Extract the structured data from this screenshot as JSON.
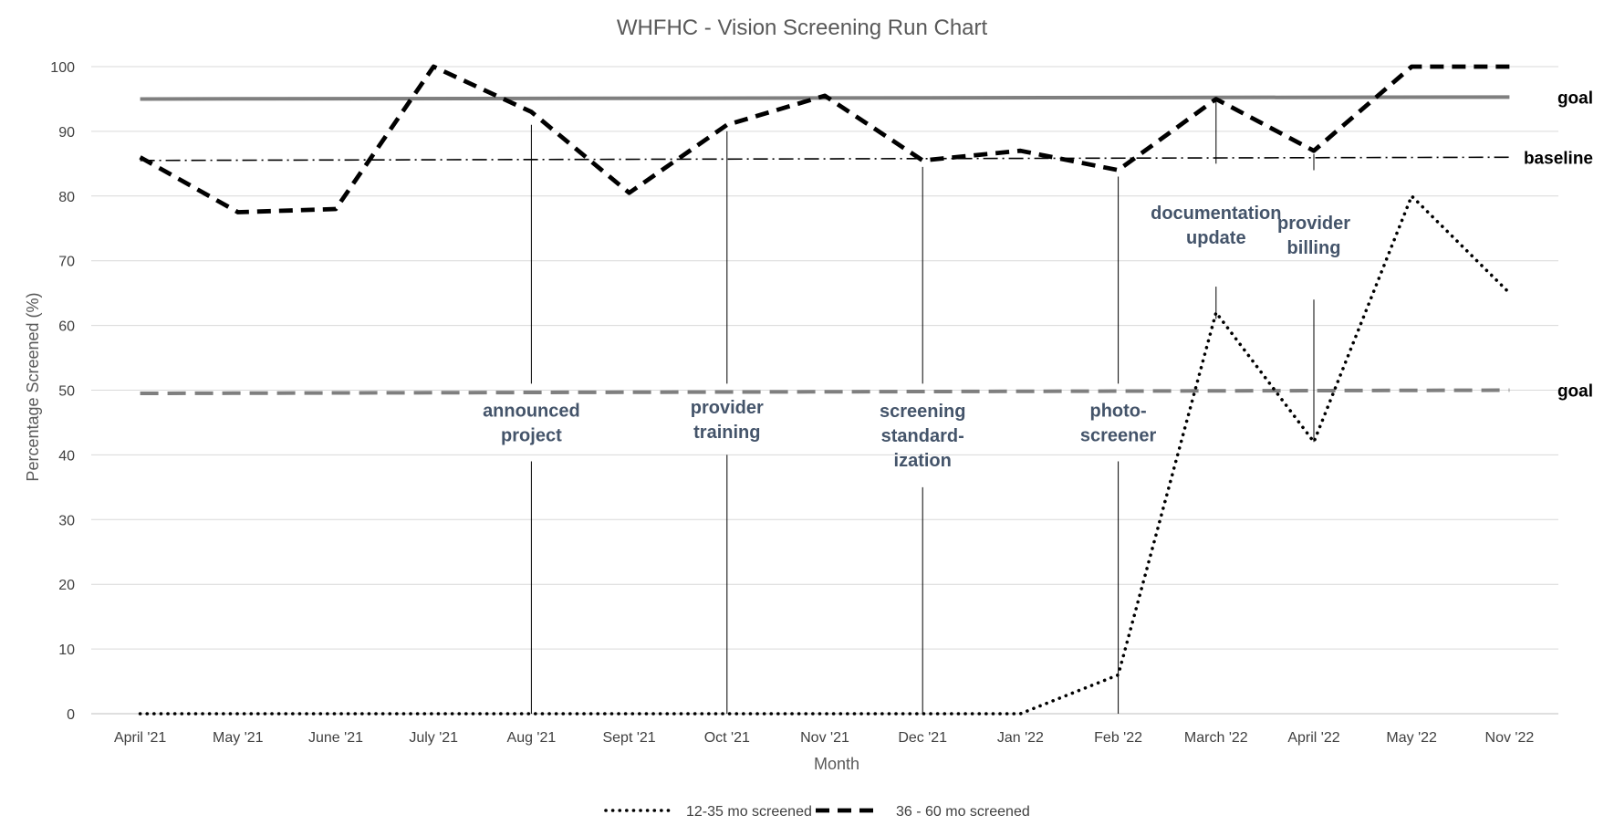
{
  "chart_data": {
    "type": "line",
    "title": "WHFHC - Vision Screening Run Chart",
    "xlabel": "Month",
    "ylabel": "Percentage Screened (%)",
    "ylim": [
      0,
      100
    ],
    "yticks": [
      0,
      10,
      20,
      30,
      40,
      50,
      60,
      70,
      80,
      90,
      100
    ],
    "grid": true,
    "legend_position": "bottom",
    "categories": [
      "April '21",
      "May '21",
      "June '21",
      "July '21",
      "Aug '21",
      "Sept '21",
      "Oct '21",
      "Nov '21",
      "Dec '21",
      "Jan '22",
      "Feb '22",
      "March '22",
      "April '22",
      "May '22",
      "Nov '22"
    ],
    "series": [
      {
        "name": "12-35 mo screened",
        "style": "dotted",
        "color": "#000000",
        "values": [
          0,
          0,
          0,
          0,
          0,
          0,
          0,
          0,
          0,
          0,
          6,
          62,
          42,
          80,
          65
        ]
      },
      {
        "name": "36 - 60 mo screened",
        "style": "dashed",
        "color": "#000000",
        "values": [
          86,
          77.5,
          78,
          100,
          93,
          80.5,
          91,
          95.5,
          85.5,
          87,
          84,
          95,
          87,
          100,
          100
        ]
      }
    ],
    "reference_lines": [
      {
        "label": "goal",
        "from": 95,
        "to": 95.3,
        "style": "solid",
        "color": "#7f7f7f"
      },
      {
        "label": "baseline",
        "from": 85.5,
        "to": 86,
        "style": "dash-dot",
        "color": "#000000"
      },
      {
        "label": "goal",
        "from": 49.5,
        "to": 50,
        "style": "dashed",
        "color": "#7f7f7f"
      }
    ],
    "annotations": [
      {
        "lines": [
          "announced",
          "project"
        ],
        "at": 4,
        "upper": [
          91,
          51
        ],
        "lower": [
          39,
          0
        ]
      },
      {
        "lines": [
          "provider",
          "training"
        ],
        "at": 6,
        "upper": [
          90,
          51
        ],
        "lower": [
          40,
          0
        ]
      },
      {
        "lines": [
          "screening",
          "standard-",
          "ization"
        ],
        "at": 8,
        "upper": [
          84.5,
          51
        ],
        "lower": [
          35,
          0
        ]
      },
      {
        "lines": [
          "photo-",
          "screener"
        ],
        "at": 10,
        "upper": [
          83,
          51
        ],
        "lower": [
          39,
          0
        ]
      },
      {
        "lines": [
          "documentation",
          "update"
        ],
        "at": 11,
        "upper": [
          95,
          85
        ],
        "lower": [
          66,
          61
        ]
      },
      {
        "lines": [
          "provider",
          "billing"
        ],
        "at": 12,
        "upper": [
          86.5,
          84
        ],
        "lower": [
          64,
          42
        ]
      }
    ]
  }
}
